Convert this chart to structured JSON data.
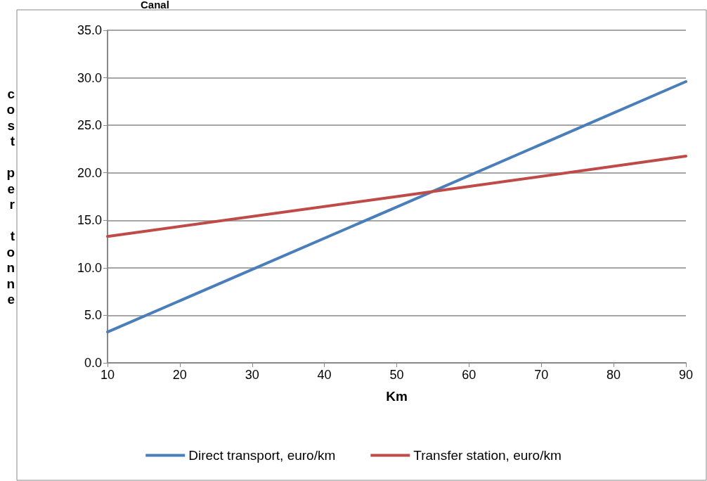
{
  "chart_data": {
    "type": "line",
    "title": "Canal",
    "xlabel": "Km",
    "ylabel": "cost per tonne",
    "x": [
      10,
      50,
      90
    ],
    "series": [
      {
        "name": "Direct transport, euro/km",
        "color": "#4a7ebb",
        "values": [
          3.25,
          16.4,
          29.6
        ]
      },
      {
        "name": "Transfer station, euro/km",
        "color": "#be4b48",
        "values": [
          13.3,
          17.5,
          21.75
        ]
      }
    ],
    "xlim": [
      10,
      90
    ],
    "xticks": [
      10,
      20,
      30,
      40,
      50,
      60,
      70,
      80,
      90
    ],
    "ylim": [
      0,
      35
    ],
    "yticks": [
      {
        "value": 0,
        "label": "0.0"
      },
      {
        "value": 5,
        "label": "5.0"
      },
      {
        "value": 10,
        "label": "10.0"
      },
      {
        "value": 15,
        "label": "15.0"
      },
      {
        "value": 20,
        "label": "20.0"
      },
      {
        "value": 25,
        "label": "25.0"
      },
      {
        "value": 30,
        "label": "30.0"
      },
      {
        "value": 35,
        "label": "35.0"
      }
    ],
    "grid": "y",
    "legend": "bottom",
    "marker": "none",
    "line_style": "solid"
  }
}
